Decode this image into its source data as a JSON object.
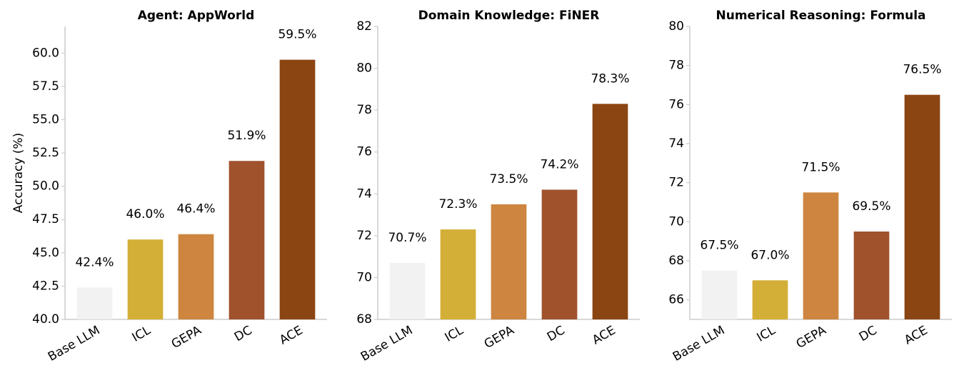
{
  "chart_data": [
    {
      "type": "bar",
      "title": "Agent: AppWorld",
      "ylabel": "Accuracy (%)",
      "categories": [
        "Base LLM",
        "ICL",
        "GEPA",
        "DC",
        "ACE"
      ],
      "values": [
        42.4,
        46.0,
        46.4,
        51.9,
        59.5
      ],
      "value_labels": [
        "42.4%",
        "46.0%",
        "46.4%",
        "51.9%",
        "59.5%"
      ],
      "colors": [
        "#f2f2f2",
        "#d4af37",
        "#cd853f",
        "#a0522d",
        "#8b4513"
      ],
      "ylim": [
        40,
        62
      ],
      "yticks": [
        {
          "value": 40,
          "label": "40.0"
        },
        42.5,
        {
          "value": 45,
          "label": "45.0"
        },
        47.5,
        {
          "value": 50,
          "label": "50.0"
        },
        52.5,
        {
          "value": 55,
          "label": "55.0"
        },
        57.5,
        {
          "value": 60,
          "label": "60.0"
        }
      ]
    },
    {
      "type": "bar",
      "title": "Domain Knowledge: FiNER",
      "categories": [
        "Base LLM",
        "ICL",
        "GEPA",
        "DC",
        "ACE"
      ],
      "values": [
        70.7,
        72.3,
        73.5,
        74.2,
        78.3
      ],
      "value_labels": [
        "70.7%",
        "72.3%",
        "73.5%",
        "74.2%",
        "78.3%"
      ],
      "colors": [
        "#f2f2f2",
        "#d4af37",
        "#cd853f",
        "#a0522d",
        "#8b4513"
      ],
      "ylim": [
        68,
        82
      ],
      "yticks": [
        68,
        70,
        72,
        74,
        76,
        78,
        80,
        82
      ]
    },
    {
      "type": "bar",
      "title": "Numerical Reasoning: Formula",
      "categories": [
        "Base LLM",
        "ICL",
        "GEPA",
        "DC",
        "ACE"
      ],
      "values": [
        67.5,
        67.0,
        71.5,
        69.5,
        76.5
      ],
      "value_labels": [
        "67.5%",
        "67.0%",
        "71.5%",
        "69.5%",
        "76.5%"
      ],
      "colors": [
        "#f2f2f2",
        "#d4af37",
        "#cd853f",
        "#a0522d",
        "#8b4513"
      ],
      "ylim": [
        65,
        80
      ],
      "yticks": [
        66,
        68,
        70,
        72,
        74,
        76,
        78,
        80
      ]
    }
  ]
}
